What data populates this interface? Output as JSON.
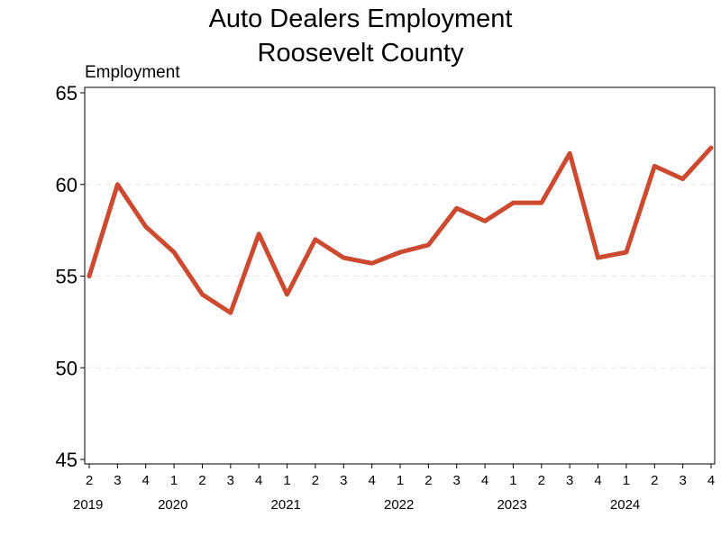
{
  "chart_data": {
    "type": "line",
    "title": [
      "Auto Dealers Employment",
      "Roosevelt County"
    ],
    "ylabel": "Employment",
    "xlabel": "",
    "ylim": [
      45,
      65
    ],
    "yticks": [
      45,
      50,
      55,
      60,
      65
    ],
    "grid": "horizontal-dashed",
    "legend": "none",
    "line_color": "#cc4a30",
    "x_quarters": [
      "2",
      "3",
      "4",
      "1",
      "2",
      "3",
      "4",
      "1",
      "2",
      "3",
      "4",
      "1",
      "2",
      "3",
      "4",
      "1",
      "2",
      "3",
      "4",
      "1",
      "2",
      "3",
      "4"
    ],
    "years": [
      {
        "label": "2019",
        "start_index": 0,
        "end_index": 2
      },
      {
        "label": "2020",
        "start_index": 3,
        "end_index": 6
      },
      {
        "label": "2021",
        "start_index": 7,
        "end_index": 10
      },
      {
        "label": "2022",
        "start_index": 11,
        "end_index": 14
      },
      {
        "label": "2023",
        "start_index": 15,
        "end_index": 18
      },
      {
        "label": "2024",
        "start_index": 19,
        "end_index": 22
      }
    ],
    "series": [
      {
        "values": [
          55.0,
          60.0,
          57.7,
          56.3,
          54.0,
          53.0,
          57.3,
          54.0,
          57.0,
          56.0,
          55.7,
          56.3,
          56.7,
          58.7,
          58.0,
          59.0,
          59.0,
          61.7,
          56.0,
          56.3,
          61.0,
          60.3,
          62.0
        ]
      }
    ]
  }
}
